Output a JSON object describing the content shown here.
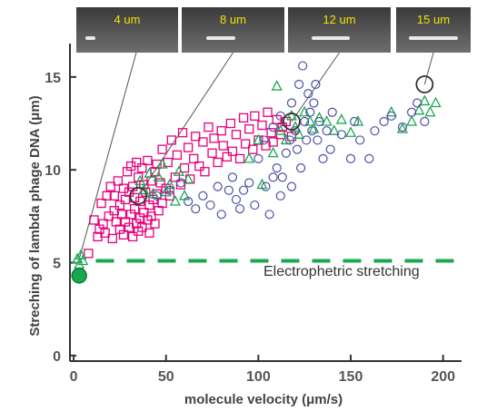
{
  "chart_data": {
    "type": "scatter",
    "title": "",
    "xlabel": "molecule velocity (μm/s)",
    "ylabel": "Streching of lambda phage DNA (μm)",
    "xlim": [
      -2,
      210
    ],
    "ylim": [
      -0.3,
      16.8
    ],
    "xticks": [
      0,
      50,
      100,
      150,
      200
    ],
    "yticks": [
      0,
      5,
      10,
      15
    ],
    "grid": false,
    "reference_line": {
      "y": 5.1,
      "label": "Electrophetric stretching",
      "color": "#1aa84f",
      "style": "dashed"
    },
    "insets": [
      {
        "label": "4 um",
        "pointer_to": [
          3,
          5.2
        ]
      },
      {
        "label": "8 um",
        "pointer_to": [
          35,
          8.6
        ]
      },
      {
        "label": "12 um",
        "pointer_to": [
          118,
          12.6
        ]
      },
      {
        "label": "15 um",
        "pointer_to": [
          190,
          14.6
        ]
      }
    ],
    "series": [
      {
        "marker": "square",
        "color": "#e6007e",
        "values": [
          [
            8,
            5.5
          ],
          [
            11,
            7.3
          ],
          [
            13,
            6.4
          ],
          [
            14,
            6.8
          ],
          [
            15,
            8.2
          ],
          [
            16,
            7.1
          ],
          [
            17,
            6.6
          ],
          [
            18,
            8.6
          ],
          [
            19,
            7.5
          ],
          [
            20,
            9.1
          ],
          [
            21,
            6.3
          ],
          [
            22,
            7.8
          ],
          [
            22,
            8.6
          ],
          [
            23,
            7.2
          ],
          [
            24,
            9.4
          ],
          [
            25,
            6.8
          ],
          [
            25,
            8.1
          ],
          [
            26,
            7.6
          ],
          [
            27,
            9.0
          ],
          [
            27,
            6.5
          ],
          [
            28,
            8.4
          ],
          [
            28,
            7.2
          ],
          [
            29,
            9.9
          ],
          [
            30,
            6.9
          ],
          [
            30,
            8.8
          ],
          [
            31,
            7.6
          ],
          [
            31,
            10.2
          ],
          [
            32,
            6.4
          ],
          [
            32,
            9.1
          ],
          [
            33,
            7.9
          ],
          [
            33,
            8.5
          ],
          [
            34,
            7.1
          ],
          [
            34,
            10.4
          ],
          [
            35,
            6.7
          ],
          [
            35,
            9.6
          ],
          [
            36,
            7.4
          ],
          [
            36,
            8.3
          ],
          [
            37,
            10.1
          ],
          [
            37,
            6.9
          ],
          [
            38,
            7.7
          ],
          [
            38,
            9.2
          ],
          [
            39,
            8.8
          ],
          [
            40,
            7.3
          ],
          [
            40,
            10.5
          ],
          [
            41,
            8.1
          ],
          [
            41,
            6.6
          ],
          [
            42,
            9.4
          ],
          [
            42,
            7.5
          ],
          [
            43,
            8.4
          ],
          [
            44,
            9.9
          ],
          [
            44,
            7.1
          ],
          [
            45,
            8.7
          ],
          [
            45,
            10.3
          ],
          [
            46,
            7.8
          ],
          [
            47,
            9.3
          ],
          [
            48,
            8.2
          ],
          [
            48,
            11.1
          ],
          [
            50,
            9.0
          ],
          [
            51,
            10.4
          ],
          [
            52,
            8.6
          ],
          [
            53,
            11.6
          ],
          [
            55,
            9.6
          ],
          [
            56,
            10.8
          ],
          [
            58,
            9.2
          ],
          [
            59,
            12.0
          ],
          [
            60,
            10.1
          ],
          [
            62,
            11.2
          ],
          [
            63,
            9.5
          ],
          [
            65,
            10.6
          ],
          [
            66,
            11.8
          ],
          [
            68,
            10.2
          ],
          [
            70,
            11.5
          ],
          [
            71,
            9.9
          ],
          [
            73,
            12.3
          ],
          [
            75,
            10.9
          ],
          [
            76,
            11.7
          ],
          [
            78,
            10.4
          ],
          [
            80,
            12.1
          ],
          [
            81,
            11.3
          ],
          [
            83,
            10.7
          ],
          [
            85,
            12.5
          ],
          [
            86,
            11.0
          ],
          [
            88,
            11.9
          ],
          [
            90,
            10.6
          ],
          [
            92,
            12.8
          ],
          [
            93,
            11.4
          ],
          [
            95,
            12.2
          ],
          [
            97,
            11.1
          ],
          [
            98,
            12.9
          ],
          [
            100,
            11.6
          ],
          [
            102,
            12.4
          ],
          [
            104,
            11.3
          ],
          [
            105,
            13.1
          ],
          [
            107,
            12.0
          ],
          [
            108,
            11.5
          ],
          [
            110,
            12.7
          ],
          [
            112,
            11.9
          ],
          [
            113,
            12.3
          ],
          [
            115,
            12.6
          ],
          [
            118,
            11.8
          ]
        ]
      },
      {
        "marker": "triangle",
        "color": "#1aa84f",
        "values": [
          [
            2,
            5.2
          ],
          [
            3,
            4.9
          ],
          [
            4,
            5.4
          ],
          [
            5,
            5.1
          ],
          [
            36,
            9.4
          ],
          [
            38,
            8.9
          ],
          [
            41,
            9.8
          ],
          [
            43,
            8.7
          ],
          [
            46,
            9.6
          ],
          [
            48,
            10.3
          ],
          [
            50,
            8.8
          ],
          [
            52,
            9.2
          ],
          [
            55,
            8.3
          ],
          [
            57,
            9.9
          ],
          [
            60,
            8.6
          ],
          [
            62,
            9.5
          ],
          [
            95,
            10.6
          ],
          [
            100,
            11.6
          ],
          [
            102,
            9.2
          ],
          [
            108,
            10.9
          ],
          [
            112,
            12.1
          ],
          [
            115,
            11.6
          ],
          [
            118,
            12.9
          ],
          [
            120,
            12.3
          ],
          [
            122,
            11.9
          ],
          [
            125,
            13.1
          ],
          [
            128,
            12.6
          ],
          [
            130,
            12.2
          ],
          [
            133,
            12.8
          ],
          [
            137,
            12.6
          ],
          [
            141,
            12.1
          ],
          [
            145,
            12.7
          ],
          [
            150,
            12.0
          ],
          [
            154,
            12.6
          ],
          [
            172,
            13.1
          ],
          [
            178,
            12.2
          ],
          [
            183,
            12.6
          ],
          [
            187,
            13.2
          ],
          [
            190,
            13.7
          ],
          [
            193,
            13.1
          ],
          [
            196,
            13.6
          ],
          [
            110,
            14.5
          ]
        ]
      },
      {
        "marker": "circle",
        "color": "#4d4fa8",
        "values": [
          [
            45,
            8.6
          ],
          [
            52,
            8.9
          ],
          [
            58,
            9.3
          ],
          [
            62,
            8.3
          ],
          [
            66,
            7.9
          ],
          [
            70,
            8.6
          ],
          [
            74,
            8.1
          ],
          [
            78,
            9.1
          ],
          [
            80,
            7.6
          ],
          [
            84,
            8.9
          ],
          [
            86,
            9.6
          ],
          [
            88,
            8.4
          ],
          [
            90,
            7.9
          ],
          [
            92,
            8.9
          ],
          [
            95,
            9.3
          ],
          [
            98,
            8.1
          ],
          [
            100,
            10.6
          ],
          [
            104,
            9.1
          ],
          [
            106,
            7.6
          ],
          [
            108,
            9.6
          ],
          [
            110,
            10.1
          ],
          [
            112,
            8.6
          ],
          [
            113,
            9.6
          ],
          [
            115,
            10.9
          ],
          [
            117,
            11.6
          ],
          [
            118,
            9.1
          ],
          [
            120,
            12.1
          ],
          [
            121,
            11.1
          ],
          [
            123,
            10.1
          ],
          [
            125,
            12.6
          ],
          [
            126,
            11.6
          ],
          [
            128,
            13.1
          ],
          [
            129,
            12.1
          ],
          [
            130,
            13.6
          ],
          [
            132,
            11.6
          ],
          [
            133,
            12.6
          ],
          [
            135,
            10.6
          ],
          [
            137,
            12.1
          ],
          [
            139,
            11.1
          ],
          [
            140,
            13.1
          ],
          [
            145,
            11.9
          ],
          [
            150,
            10.6
          ],
          [
            152,
            12.6
          ],
          [
            155,
            11.6
          ],
          [
            160,
            10.6
          ],
          [
            163,
            12.1
          ],
          [
            168,
            12.6
          ],
          [
            172,
            12.9
          ],
          [
            178,
            12.3
          ],
          [
            183,
            13.1
          ],
          [
            186,
            13.6
          ],
          [
            190,
            12.6
          ],
          [
            118,
            13.6
          ],
          [
            122,
            14.6
          ],
          [
            124,
            15.6
          ],
          [
            127,
            14.1
          ],
          [
            131,
            14.6
          ],
          [
            112,
            12.9
          ],
          [
            108,
            12.3
          ],
          [
            103,
            11.6
          ]
        ]
      }
    ],
    "highlighted_points": [
      {
        "x": 3,
        "y": 4.3,
        "marker": "circle-filled",
        "color": "#1aa84f"
      },
      {
        "x": 35,
        "y": 8.6,
        "marker": "circle",
        "color": "#333333"
      },
      {
        "x": 118,
        "y": 12.6,
        "marker": "circle",
        "color": "#333333"
      },
      {
        "x": 190,
        "y": 14.6,
        "marker": "circle",
        "color": "#333333"
      }
    ]
  }
}
